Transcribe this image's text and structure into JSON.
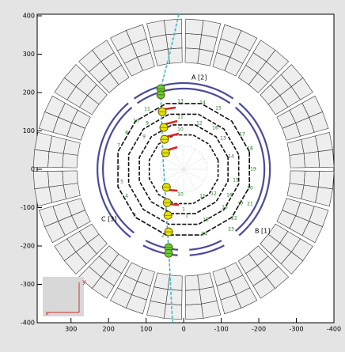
{
  "chart_data": {
    "type": "scatter",
    "xlim": [
      390,
      -400
    ],
    "ylim": [
      -400,
      400
    ],
    "xticks": [
      300,
      200,
      100,
      0,
      -100,
      -200,
      -300,
      -400
    ],
    "yticks": [
      400,
      300,
      200,
      100,
      0,
      -100,
      -200,
      -300,
      -400
    ],
    "series": [
      {
        "color": "#e6e600",
        "x": [
          57,
          53,
          51,
          48,
          46,
          44,
          42,
          40
        ],
        "values": [
          150,
          109,
          78,
          43,
          -47,
          -87,
          -120,
          -163
        ]
      },
      {
        "color": "#5fcf2f",
        "x": [
          61,
          61,
          40,
          40
        ],
        "values": [
          210,
          194,
          -204,
          -219
        ]
      }
    ],
    "annotations": [
      "A [2]",
      "B [1]",
      "C [3]"
    ],
    "hit_labels": [
      13,
      14,
      15,
      11,
      10,
      11,
      12,
      16,
      9,
      10,
      17,
      8,
      9,
      13,
      18,
      7,
      14,
      19,
      6,
      15,
      5,
      4,
      3,
      1,
      10,
      11,
      12,
      16,
      20,
      13,
      17,
      21,
      18,
      22,
      1,
      24,
      23,
      2
    ],
    "axis_icon": {
      "x_label": "x",
      "y_label": "y"
    }
  }
}
